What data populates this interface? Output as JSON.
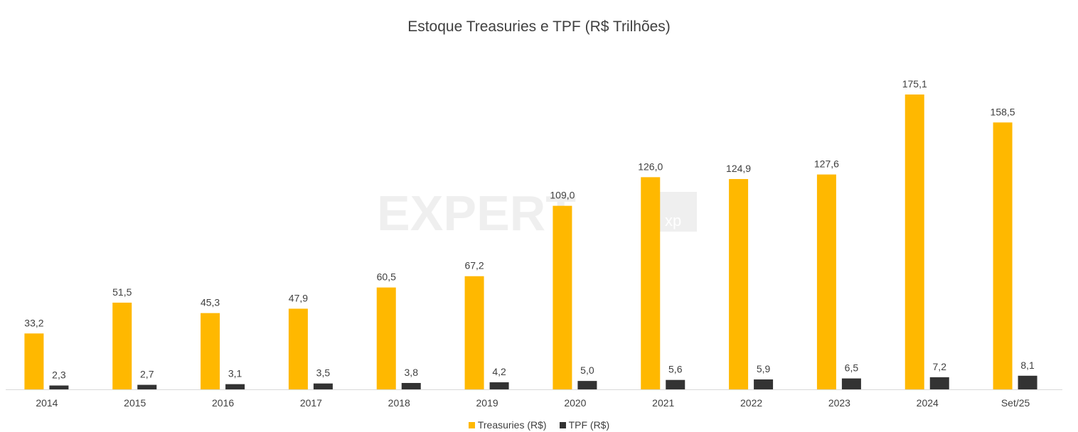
{
  "chart_data": {
    "type": "bar",
    "title": "Estoque Treasuries e TPF (R$ Trilhões)",
    "categories": [
      "2014",
      "2015",
      "2016",
      "2017",
      "2018",
      "2019",
      "2020",
      "2021",
      "2022",
      "2023",
      "2024",
      "Set/25"
    ],
    "series": [
      {
        "name": "Treasuries (R$)",
        "color": "#FFB800",
        "values": [
          33.2,
          51.5,
          45.3,
          47.9,
          60.5,
          67.2,
          109.0,
          126.0,
          124.9,
          127.6,
          175.1,
          158.5
        ],
        "labels": [
          "33,2",
          "51,5",
          "45,3",
          "47,9",
          "60,5",
          "67,2",
          "109,0",
          "126,0",
          "124,9",
          "127,6",
          "175,1",
          "158,5"
        ]
      },
      {
        "name": "TPF (R$)",
        "color": "#333333",
        "values": [
          2.3,
          2.7,
          3.1,
          3.5,
          3.8,
          4.2,
          5.0,
          5.6,
          5.9,
          6.5,
          7.2,
          8.1
        ],
        "labels": [
          "2,3",
          "2,7",
          "3,1",
          "3,5",
          "3,8",
          "4,2",
          "5,0",
          "5,6",
          "5,9",
          "6,5",
          "7,2",
          "8,1"
        ]
      }
    ],
    "xlabel": "",
    "ylabel": "",
    "ylim": [
      0,
      180
    ],
    "grid": false,
    "legend": "bottom"
  },
  "watermark": {
    "text": "EXPERT",
    "badge": "xp"
  }
}
